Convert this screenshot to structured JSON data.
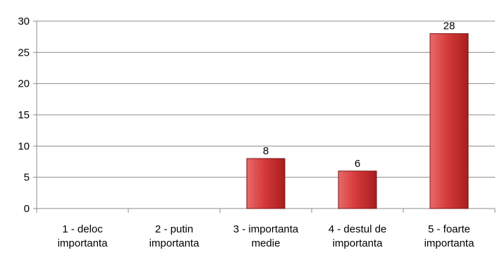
{
  "chart_data": {
    "type": "bar",
    "categories": [
      [
        "1 - deloc",
        "importanta"
      ],
      [
        "2 - putin",
        "importanta"
      ],
      [
        "3 - importanta",
        "medie"
      ],
      [
        "4 - destul de",
        "importanta"
      ],
      [
        "5 - foarte",
        "importanta"
      ]
    ],
    "values": [
      0,
      0,
      8,
      6,
      28
    ],
    "data_labels": [
      "",
      "",
      "8",
      "6",
      "28"
    ],
    "yticks": [
      "0",
      "5",
      "10",
      "15",
      "20",
      "25",
      "30"
    ],
    "ylim": [
      0,
      30
    ],
    "ystep": 5,
    "grid": true,
    "legend": "none",
    "colors": {
      "bar_top": "#e86a6a",
      "bar_mid": "#d63a3a",
      "bar_bottom": "#a81e1e",
      "bar_stroke": "#7a1414",
      "grid": "#8c8c8c",
      "axis": "#8c8c8c"
    }
  }
}
